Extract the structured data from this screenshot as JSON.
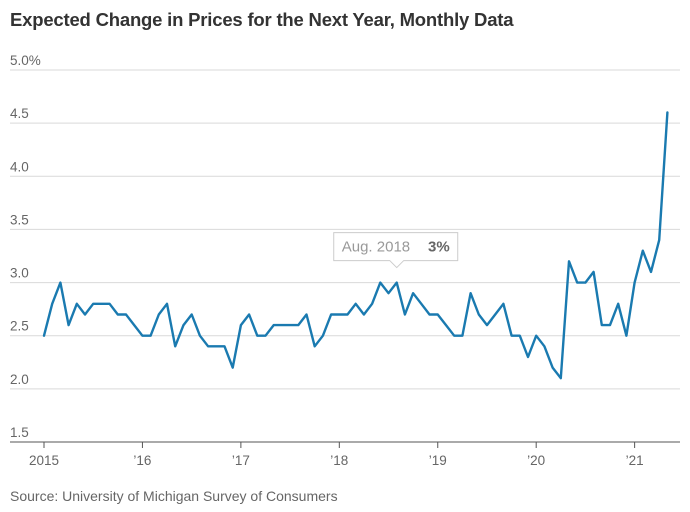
{
  "title": "Expected Change in Prices for the Next Year, Monthly Data",
  "source": "Source: University of Michigan Survey of Consumers",
  "colors": {
    "line": "#1a7ab0",
    "grid": "#d9d9d9",
    "text": "#666666"
  },
  "tooltip": {
    "label": "Aug. 2018",
    "value": "3%"
  },
  "chart_data": {
    "type": "line",
    "title": "Expected Change in Prices for the Next Year, Monthly Data",
    "ylim": [
      1.5,
      5.0
    ],
    "xlim": [
      2015.0,
      2021.4
    ],
    "yticks": [
      {
        "v": 1.5,
        "label": "1.5"
      },
      {
        "v": 2.0,
        "label": "2.0"
      },
      {
        "v": 2.5,
        "label": "2.5"
      },
      {
        "v": 3.0,
        "label": "3.0"
      },
      {
        "v": 3.5,
        "label": "3.5"
      },
      {
        "v": 4.0,
        "label": "4.0"
      },
      {
        "v": 4.5,
        "label": "4.5"
      },
      {
        "v": 5.0,
        "label": "5.0%"
      }
    ],
    "xticks": [
      {
        "v": 2015,
        "label": "2015"
      },
      {
        "v": 2016,
        "label": "’16"
      },
      {
        "v": 2017,
        "label": "’17"
      },
      {
        "v": 2018,
        "label": "’18"
      },
      {
        "v": 2019,
        "label": "’19"
      },
      {
        "v": 2020,
        "label": "’20"
      },
      {
        "v": 2021,
        "label": "’21"
      }
    ],
    "grid": true,
    "series": [
      {
        "start": "2015-01",
        "values": [
          2.5,
          2.8,
          3.0,
          2.6,
          2.8,
          2.7,
          2.8,
          2.8,
          2.8,
          2.7,
          2.7,
          2.6,
          2.5,
          2.5,
          2.7,
          2.8,
          2.4,
          2.6,
          2.7,
          2.5,
          2.4,
          2.4,
          2.4,
          2.2,
          2.6,
          2.7,
          2.5,
          2.5,
          2.6,
          2.6,
          2.6,
          2.6,
          2.7,
          2.4,
          2.5,
          2.7,
          2.7,
          2.7,
          2.8,
          2.7,
          2.8,
          3.0,
          2.9,
          3.0,
          2.7,
          2.9,
          2.8,
          2.7,
          2.7,
          2.6,
          2.5,
          2.5,
          2.9,
          2.7,
          2.6,
          2.7,
          2.8,
          2.5,
          2.5,
          2.3,
          2.5,
          2.4,
          2.2,
          2.1,
          3.2,
          3.0,
          3.0,
          3.1,
          2.6,
          2.6,
          2.8,
          2.5,
          3.0,
          3.3,
          3.1,
          3.4,
          4.6
        ]
      }
    ]
  }
}
